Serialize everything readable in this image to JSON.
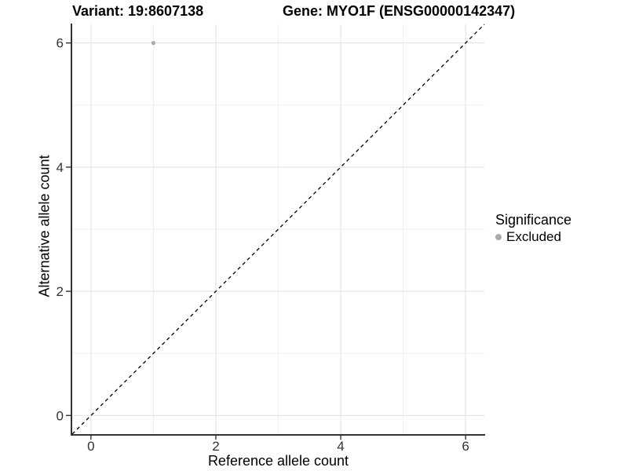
{
  "chart_data": {
    "type": "scatter",
    "title_left": "Variant: 19:8607138",
    "title_right": "Gene: MYO1F (ENSG00000142347)",
    "xlabel": "Reference allele count",
    "ylabel": "Alternative allele count",
    "xlim": [
      -0.3,
      6.3
    ],
    "ylim": [
      -0.3,
      6.3
    ],
    "x_major_ticks": [
      0,
      2,
      4,
      6
    ],
    "x_minor_ticks": [
      1,
      3,
      5
    ],
    "y_major_ticks": [
      0,
      2,
      4,
      6
    ],
    "y_minor_ticks": [
      1,
      3,
      5
    ],
    "grid": "major and minor gridlines on white background",
    "series": [
      {
        "name": "Excluded",
        "color": "#aaaaaa",
        "marker": "circle",
        "points": [
          {
            "x": 1,
            "y": 6
          }
        ]
      }
    ],
    "reference_line": {
      "slope": 1,
      "intercept": 0,
      "style": "dashed",
      "color": "#000000"
    },
    "legend": {
      "title": "Significance",
      "position": "right",
      "items": [
        {
          "label": "Excluded",
          "color": "#aaaaaa"
        }
      ]
    },
    "colors": {
      "background": "#ffffff",
      "grid_major": "#e3e3e3",
      "grid_minor": "#efefef",
      "axis_line": "#333333",
      "tick_mark": "#333333",
      "tick_label": "#333333"
    }
  }
}
